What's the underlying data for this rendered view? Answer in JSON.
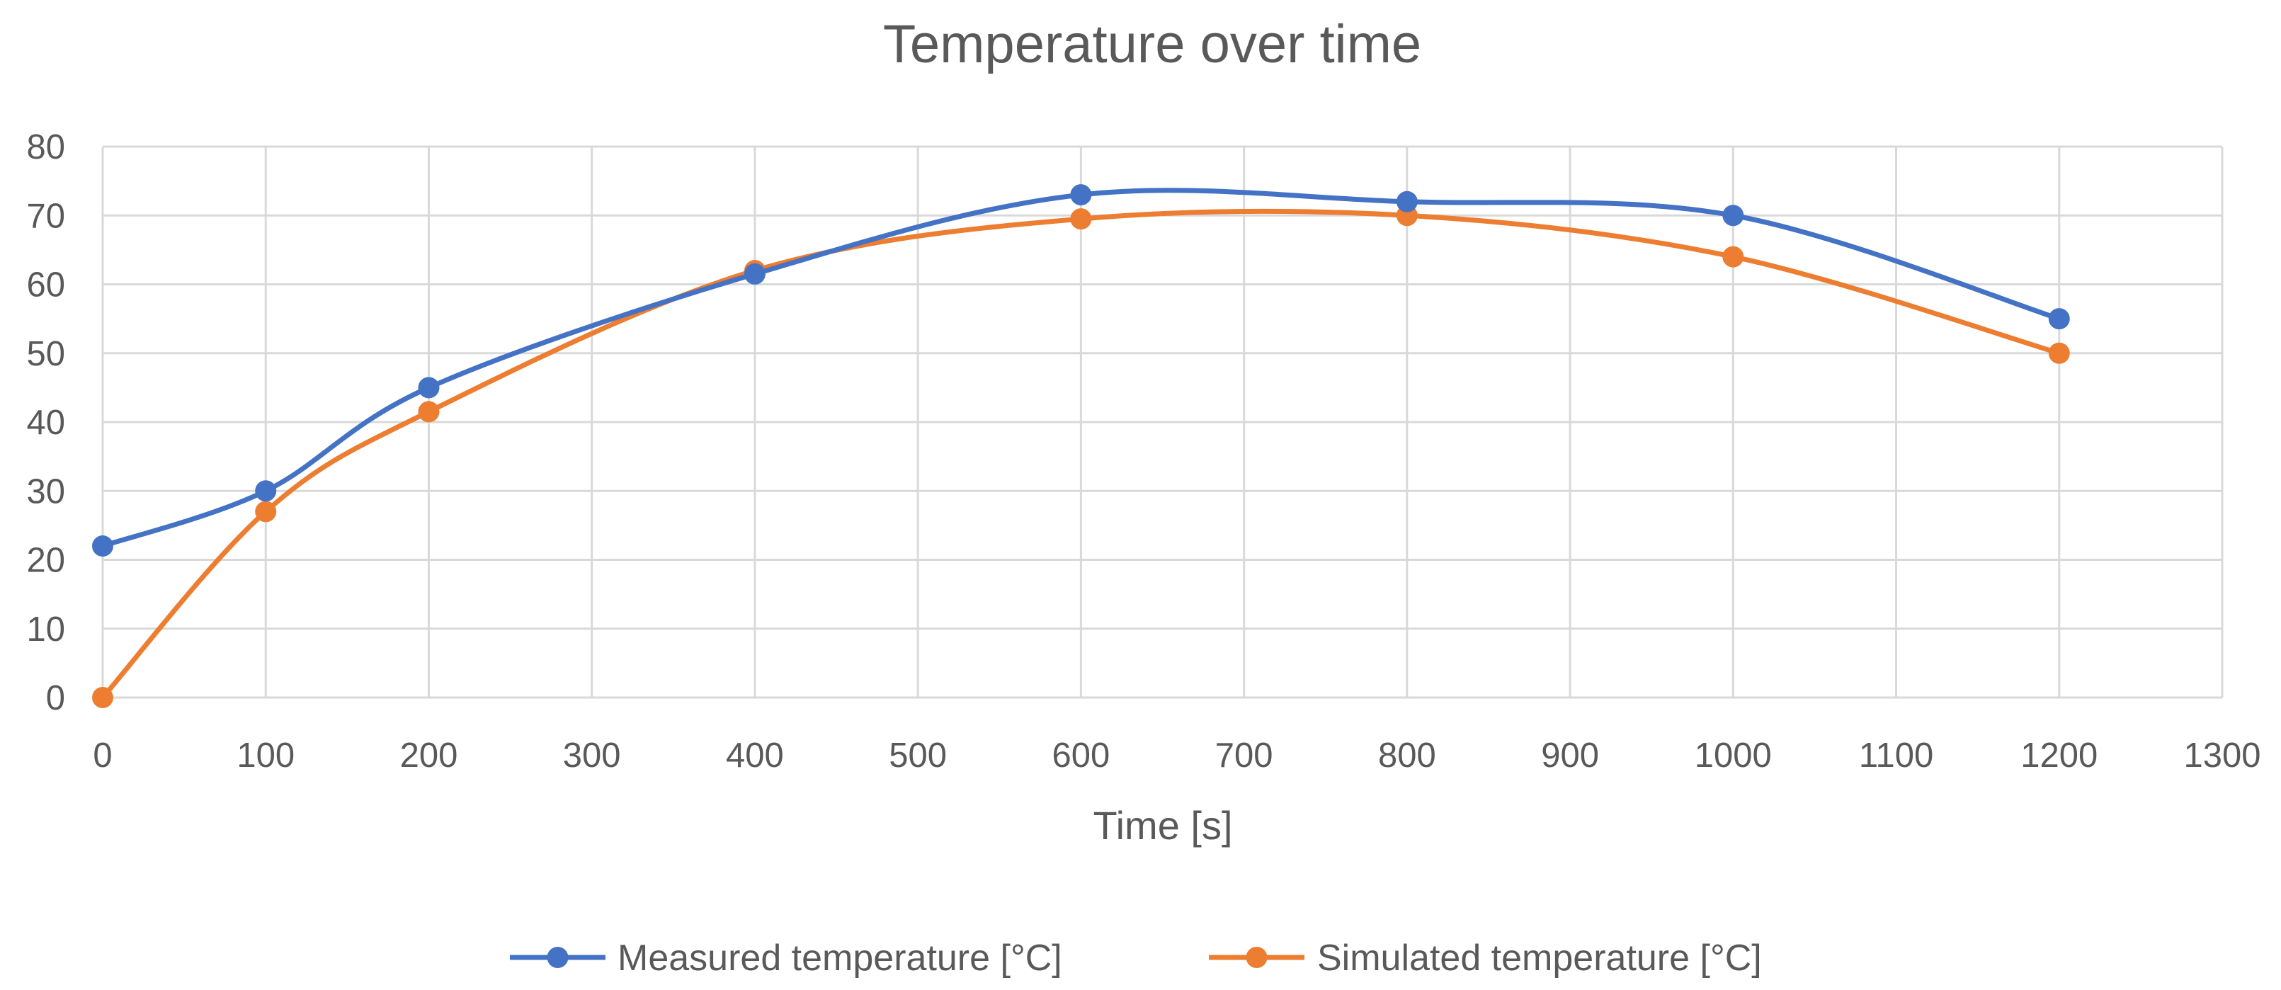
{
  "chart_data": {
    "type": "line",
    "title": "Temperature over time",
    "xlabel": "Time [s]",
    "ylabel": "",
    "xlim": [
      0,
      1300
    ],
    "ylim": [
      0,
      80
    ],
    "xticks": [
      0,
      100,
      200,
      300,
      400,
      500,
      600,
      700,
      800,
      900,
      1000,
      1100,
      1200,
      1300
    ],
    "yticks": [
      0,
      10,
      20,
      30,
      40,
      50,
      60,
      70,
      80
    ],
    "grid": true,
    "smooth": true,
    "legend_position": "bottom",
    "series": [
      {
        "name": "Measured temperature [°C]",
        "color": "#4472C4",
        "x": [
          0,
          100,
          200,
          400,
          600,
          800,
          1000,
          1200
        ],
        "y": [
          22,
          30,
          45,
          61.5,
          73,
          72,
          70,
          55
        ]
      },
      {
        "name": "Simulated temperature [°C]",
        "color": "#ED7D31",
        "x": [
          0,
          100,
          200,
          400,
          600,
          800,
          1000,
          1200
        ],
        "y": [
          0,
          27,
          41.5,
          62,
          69.5,
          70,
          64,
          50
        ]
      }
    ]
  }
}
